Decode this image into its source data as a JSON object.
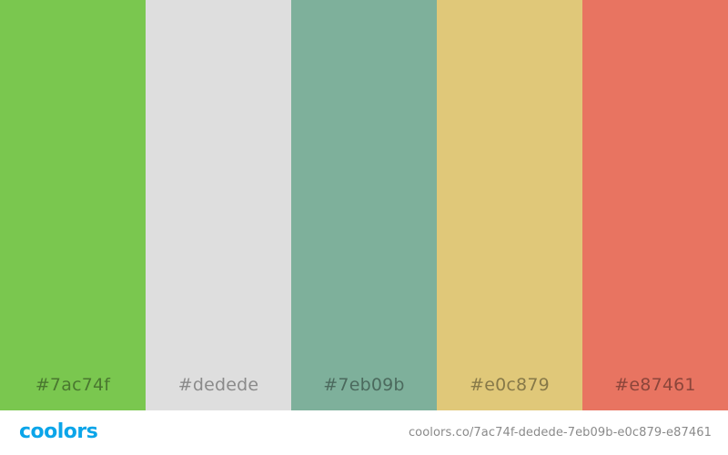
{
  "palette": {
    "swatches": [
      {
        "hex": "#7ac74f",
        "label": "#7ac74f"
      },
      {
        "hex": "#dedede",
        "label": "#dedede"
      },
      {
        "hex": "#7eb09b",
        "label": "#7eb09b"
      },
      {
        "hex": "#e0c879",
        "label": "#e0c879"
      },
      {
        "hex": "#e87461",
        "label": "#e87461"
      }
    ]
  },
  "footer": {
    "brand": "coolors",
    "brand_color": "#0ba5e9",
    "url": "coolors.co/7ac74f-dedede-7eb09b-e0c879-e87461"
  }
}
